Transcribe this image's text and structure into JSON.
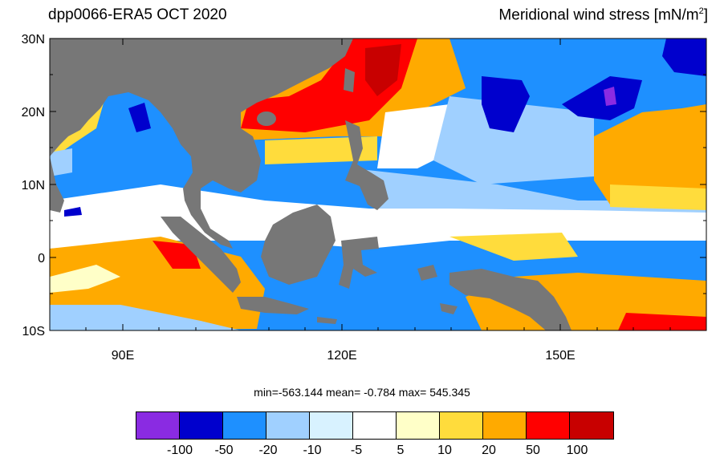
{
  "header": {
    "left_title": "dpp0066-ERA5  OCT 2020",
    "right_title_main": "Meridional wind stress [mN/m",
    "right_title_sup": "2",
    "right_title_end": "]"
  },
  "map": {
    "lat_labels": [
      "30N",
      "20N",
      "10N",
      "0",
      "10S"
    ],
    "lon_labels": [
      "90E",
      "120E",
      "150E"
    ],
    "lon_range": [
      80,
      170
    ],
    "lat_range": [
      -10,
      30
    ]
  },
  "stats": {
    "text": "min=-563.144  mean=  -0.784  max= 545.345",
    "min": -563.144,
    "mean": -0.784,
    "max": 545.345
  },
  "colorbar": {
    "colors": [
      "#8a2be2",
      "#0000cd",
      "#1e90ff",
      "#a0d0ff",
      "#d8f2ff",
      "#ffffff",
      "#ffffc8",
      "#ffdc3c",
      "#ffaa00",
      "#ff0000",
      "#c80000"
    ],
    "labels": [
      "-100",
      "-50",
      "-20",
      "-10",
      "-5",
      "5",
      "10",
      "20",
      "50",
      "100"
    ]
  },
  "colors": {
    "land": "#777777",
    "ocean_default": "#ffffff"
  }
}
